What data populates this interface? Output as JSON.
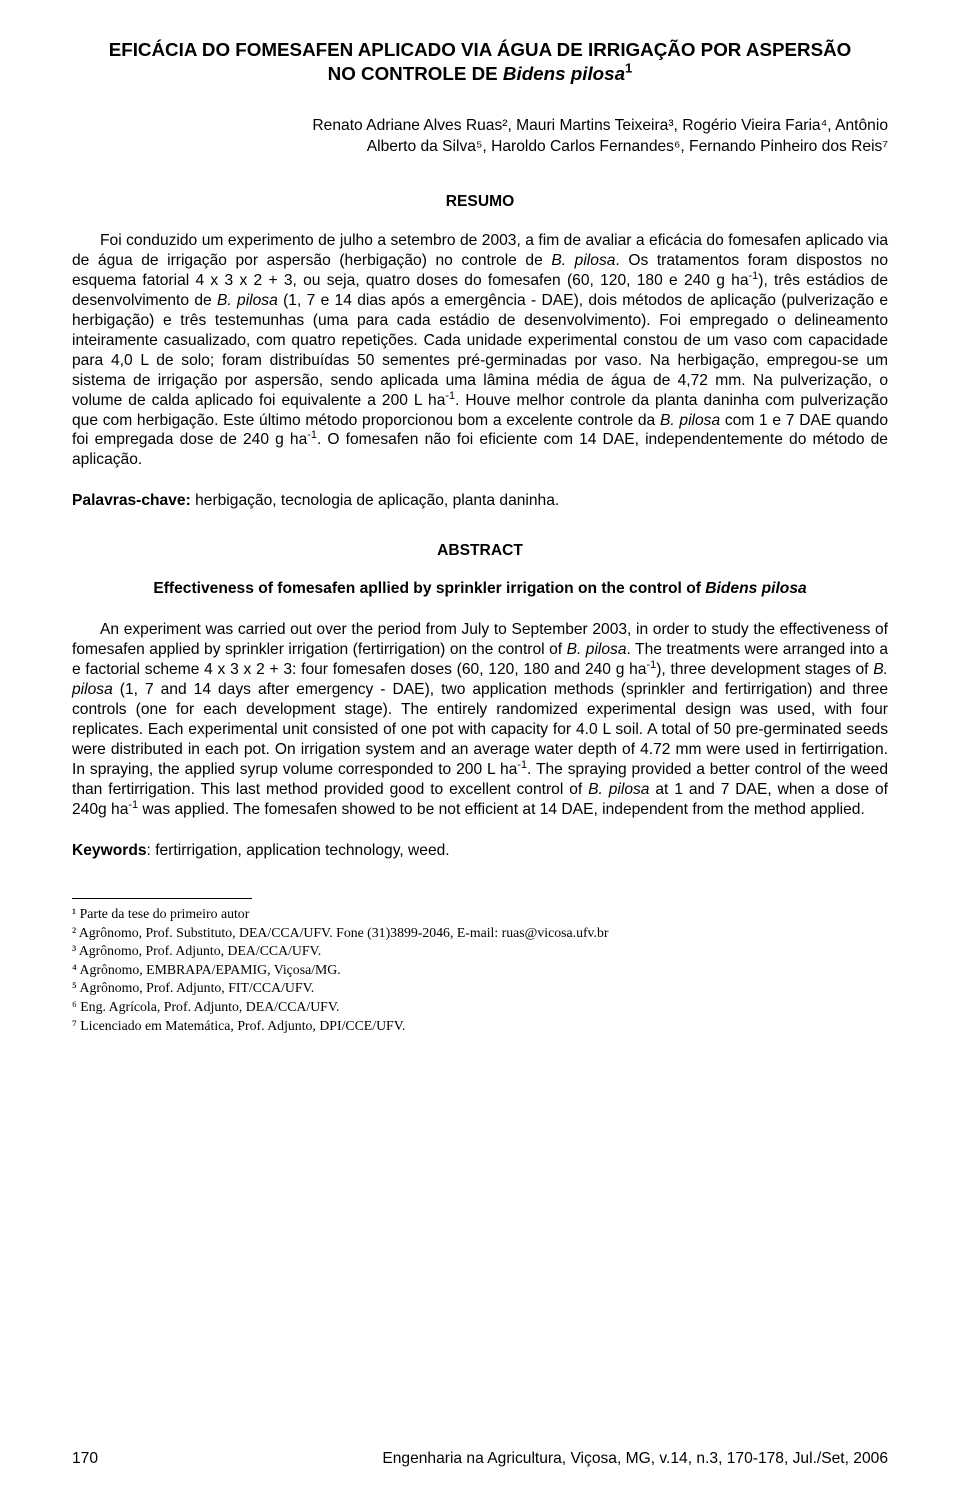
{
  "title": {
    "line1": "EFICÁCIA DO FOMESAFEN APLICADO VIA ÁGUA DE IRRIGAÇÃO POR ASPERSÃO",
    "line2_pre": "NO CONTROLE DE ",
    "line2_italic": "Bidens pilosa",
    "line2_sup": "1"
  },
  "authors": {
    "line1": "Renato Adriane Alves Ruas², Mauri Martins Teixeira³, Rogério Vieira Faria⁴, Antônio",
    "line2": "Alberto da Silva⁵, Haroldo Carlos Fernandes⁶, Fernando Pinheiro dos Reis⁷"
  },
  "resumo_heading": "RESUMO",
  "resumo_body_html": "<span class=\"indent\"></span>Foi conduzido um experimento de julho a setembro de 2003, a fim de avaliar a eficácia do fomesafen aplicado via de água de irrigação por aspersão (herbigação) no controle de <i>B. pilosa</i>. Os tratamentos foram dispostos no esquema fatorial 4 x 3 x 2 + 3, ou seja, quatro doses do fomesafen (60, 120, 180 e 240 g ha<sup>-1</sup>), três estádios de desenvolvimento de <i>B. pilosa</i> (1, 7 e 14 dias após a emergência - DAE), dois métodos de aplicação (pulverização e herbigação) e três testemunhas (uma para cada estádio de desenvolvimento). Foi empregado o delineamento inteiramente casualizado, com quatro repetições. Cada unidade experimental constou de um vaso com capacidade para 4,0 L de solo; foram distribuídas 50 sementes pré-germinadas por vaso. Na herbigação, empregou-se um sistema de irrigação por aspersão, sendo aplicada uma lâmina média de água de 4,72 mm. Na pulverização, o volume de calda aplicado foi equivalente a 200 L ha<sup>-1</sup>. Houve melhor controle da planta daninha com pulverização que com herbigação. Este último método proporcionou bom a excelente controle da <i>B. pilosa</i> com 1 e 7 DAE quando foi empregada dose de 240 g ha<sup>-1</sup>. O fomesafen não foi eficiente com 14 DAE, independentemente do método de aplicação.",
  "palavras_chave": {
    "label": "Palavras-chave:",
    "text": " herbigação, tecnologia de aplicação, planta daninha."
  },
  "abstract_heading": "ABSTRACT",
  "abstract_subtitle_pre": "Effectiveness of fomesafen apllied by sprinkler irrigation on the control of ",
  "abstract_subtitle_italic": "Bidens pilosa",
  "abstract_body_html": "<span class=\"indent\"></span>An experiment was carried out over the period from July to September 2003, in order to study the effectiveness of fomesafen applied by sprinkler irrigation (fertirrigation) on the control of <i>B. pilosa</i>. The treatments were arranged into a e factorial scheme 4 x 3 x 2 + 3: four fomesafen doses (60, 120, 180 and 240 g ha<sup>-1</sup>), three development stages of <i>B. pilosa</i> (1, 7 and 14 days after emergency - DAE), two application methods (sprinkler and fertirrigation) and three controls (one for each development stage). The entirely randomized experimental design was used, with four replicates. Each experimental unit consisted of one pot with capacity for 4.0 L soil. A total of 50 pre-germinated seeds were distributed in each pot. On irrigation system and an average water depth of 4.72 mm were used in fertirrigation. In spraying, the applied syrup volume corresponded to 200 L ha<sup>-1</sup>. The spraying provided a better control of the weed than fertirrigation. This last method provided good to excellent control of <i>B. pilosa</i> at 1 and 7 DAE, when a dose of 240g ha<sup>-1</sup> was applied. The fomesafen showed to be not efficient at 14 DAE, independent from the method applied.",
  "keywords": {
    "label": "Keywords",
    "text": ": fertirrigation, application technology, weed."
  },
  "footnotes": [
    "¹ Parte da tese do primeiro autor",
    "² Agrônomo, Prof. Substituto, DEA/CCA/UFV. Fone (31)3899-2046, E-mail: ruas@vicosa.ufv.br",
    "³ Agrônomo, Prof. Adjunto, DEA/CCA/UFV.",
    "⁴ Agrônomo, EMBRAPA/EPAMIG, Viçosa/MG.",
    "⁵ Agrônomo, Prof. Adjunto, FIT/CCA/UFV.",
    "⁶ Eng. Agrícola, Prof. Adjunto, DEA/CCA/UFV.",
    "⁷ Licenciado em Matemática, Prof. Adjunto, DPI/CCE/UFV."
  ],
  "footer": {
    "page": "170",
    "citation": "Engenharia na Agricultura, Viçosa, MG, v.14, n.3, 170-178, Jul./Set, 2006"
  }
}
